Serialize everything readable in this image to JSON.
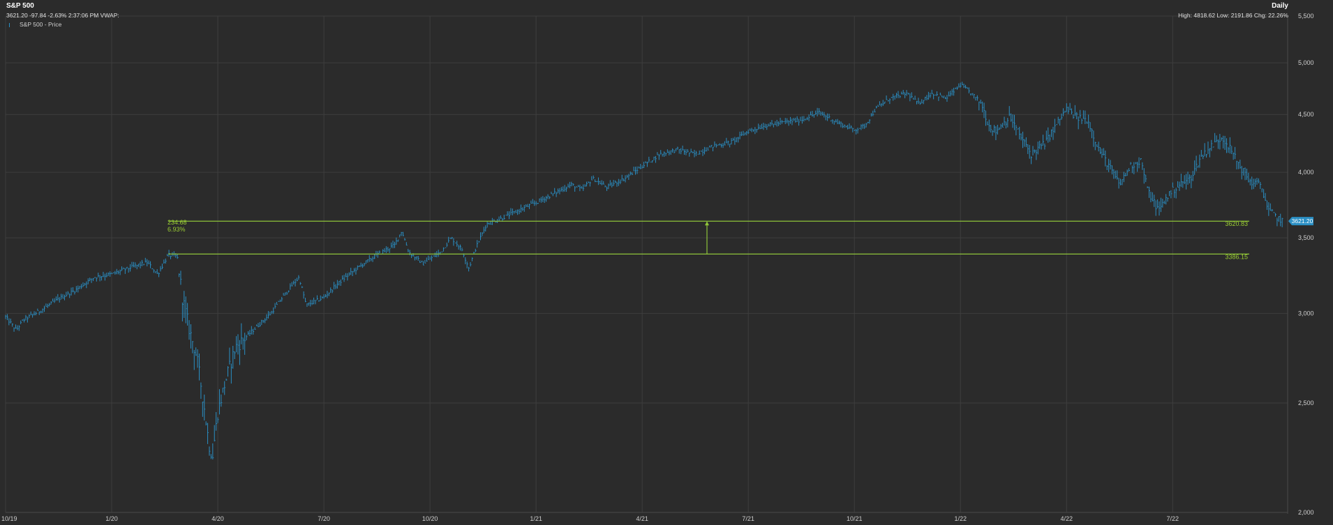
{
  "header": {
    "title": "S&P 500",
    "quote": "3621.20 -97.84 -2.63% 2:37:06 PM VWAP:",
    "legend": "S&P 500 - Price",
    "period": "Daily",
    "stats": "High: 4818.62 Low: 2191.86 Chg: 22.26%"
  },
  "colors": {
    "price": "#2a8fc4",
    "measure": "#8fc43a",
    "grid": "#3e3e3e",
    "tag": "#2a8fc4"
  },
  "last_price_label": "3621.20",
  "measure": {
    "upper": 3620.83,
    "lower": 3386.15,
    "upper_label": "3620.83",
    "lower_label": "3386.15",
    "change": "234.68",
    "pct": "6.93%"
  },
  "chart_data": {
    "type": "ohlc",
    "scale": "log",
    "ylim": [
      2000,
      5500
    ],
    "yticks": [
      2000,
      2500,
      3000,
      3500,
      4000,
      4500,
      5000,
      5500
    ],
    "ytick_labels": [
      "2,000",
      "2,500",
      "3,000",
      "3,500",
      "4,000",
      "4,500",
      "5,000",
      "5,500"
    ],
    "x_labels": [
      "10/19",
      "1/20",
      "4/20",
      "7/20",
      "10/20",
      "1/21",
      "4/21",
      "7/21",
      "10/21",
      "1/22",
      "4/22",
      "7/22"
    ],
    "x_label_months": [
      0,
      3,
      6,
      9,
      12,
      15,
      18,
      21,
      24,
      27,
      30,
      33
    ],
    "xlim_months": [
      0,
      36.25
    ],
    "series": [
      {
        "name": "S&P 500 - Price",
        "anchors": [
          [
            0,
            2980
          ],
          [
            0.3,
            2900
          ],
          [
            0.5,
            2960
          ],
          [
            1.0,
            3020
          ],
          [
            1.5,
            3090
          ],
          [
            2.0,
            3150
          ],
          [
            2.5,
            3230
          ],
          [
            3.0,
            3250
          ],
          [
            3.6,
            3300
          ],
          [
            4.0,
            3330
          ],
          [
            4.3,
            3250
          ],
          [
            4.6,
            3380
          ],
          [
            4.85,
            3370
          ],
          [
            5.0,
            3100
          ],
          [
            5.2,
            2900
          ],
          [
            5.4,
            2750
          ],
          [
            5.6,
            2500
          ],
          [
            5.75,
            2300
          ],
          [
            5.85,
            2240
          ],
          [
            6.0,
            2450
          ],
          [
            6.2,
            2600
          ],
          [
            6.5,
            2800
          ],
          [
            7.0,
            2900
          ],
          [
            7.5,
            3000
          ],
          [
            8.0,
            3150
          ],
          [
            8.3,
            3230
          ],
          [
            8.5,
            3050
          ],
          [
            9.0,
            3100
          ],
          [
            9.5,
            3210
          ],
          [
            10.0,
            3300
          ],
          [
            10.5,
            3380
          ],
          [
            11.0,
            3450
          ],
          [
            11.2,
            3550
          ],
          [
            11.4,
            3400
          ],
          [
            11.8,
            3320
          ],
          [
            12.3,
            3400
          ],
          [
            12.6,
            3500
          ],
          [
            12.9,
            3420
          ],
          [
            13.1,
            3290
          ],
          [
            13.3,
            3430
          ],
          [
            13.6,
            3600
          ],
          [
            14.0,
            3640
          ],
          [
            14.5,
            3700
          ],
          [
            15.0,
            3760
          ],
          [
            15.5,
            3830
          ],
          [
            16.0,
            3900
          ],
          [
            16.3,
            3860
          ],
          [
            16.6,
            3950
          ],
          [
            17.0,
            3880
          ],
          [
            17.5,
            3950
          ],
          [
            18.0,
            4050
          ],
          [
            18.5,
            4150
          ],
          [
            19.0,
            4190
          ],
          [
            19.5,
            4150
          ],
          [
            20.0,
            4220
          ],
          [
            20.5,
            4250
          ],
          [
            21.0,
            4350
          ],
          [
            21.5,
            4400
          ],
          [
            22.0,
            4430
          ],
          [
            22.5,
            4450
          ],
          [
            23.0,
            4520
          ],
          [
            23.5,
            4430
          ],
          [
            24.0,
            4360
          ],
          [
            24.3,
            4400
          ],
          [
            24.6,
            4550
          ],
          [
            25.0,
            4650
          ],
          [
            25.5,
            4700
          ],
          [
            25.8,
            4600
          ],
          [
            26.2,
            4700
          ],
          [
            26.6,
            4650
          ],
          [
            27.0,
            4780
          ],
          [
            27.3,
            4700
          ],
          [
            27.6,
            4600
          ],
          [
            27.8,
            4400
          ],
          [
            28.0,
            4350
          ],
          [
            28.4,
            4480
          ],
          [
            28.7,
            4300
          ],
          [
            29.0,
            4150
          ],
          [
            29.4,
            4250
          ],
          [
            29.7,
            4400
          ],
          [
            30.0,
            4550
          ],
          [
            30.3,
            4470
          ],
          [
            30.6,
            4450
          ],
          [
            30.9,
            4200
          ],
          [
            31.2,
            4050
          ],
          [
            31.5,
            3900
          ],
          [
            31.8,
            4050
          ],
          [
            32.1,
            4100
          ],
          [
            32.3,
            3850
          ],
          [
            32.6,
            3700
          ],
          [
            32.9,
            3830
          ],
          [
            33.2,
            3900
          ],
          [
            33.5,
            3950
          ],
          [
            33.8,
            4130
          ],
          [
            34.1,
            4220
          ],
          [
            34.4,
            4300
          ],
          [
            34.6,
            4210
          ],
          [
            34.9,
            4050
          ],
          [
            35.2,
            3920
          ],
          [
            35.5,
            3900
          ],
          [
            35.7,
            3700
          ],
          [
            36.0,
            3640
          ],
          [
            36.1,
            3621
          ]
        ]
      }
    ]
  }
}
